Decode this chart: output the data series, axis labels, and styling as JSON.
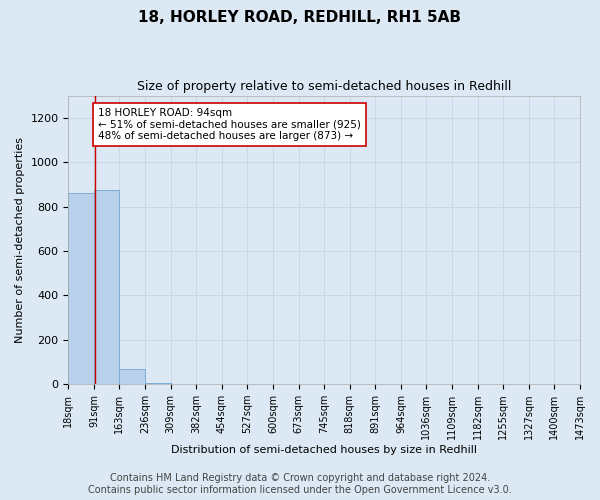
{
  "title": "18, HORLEY ROAD, REDHILL, RH1 5AB",
  "subtitle": "Size of property relative to semi-detached houses in Redhill",
  "xlabel": "Distribution of semi-detached houses by size in Redhill",
  "ylabel": "Number of semi-detached properties",
  "annotation_line1": "18 HORLEY ROAD: 94sqm",
  "annotation_line2": "← 51% of semi-detached houses are smaller (925)",
  "annotation_line3": "48% of semi-detached houses are larger (873) →",
  "bin_edges": [
    18,
    91,
    163,
    236,
    309,
    382,
    454,
    527,
    600,
    673,
    745,
    818,
    891,
    964,
    1036,
    1109,
    1182,
    1255,
    1327,
    1400,
    1473
  ],
  "bin_labels": [
    "18sqm",
    "91sqm",
    "163sqm",
    "236sqm",
    "309sqm",
    "382sqm",
    "454sqm",
    "527sqm",
    "600sqm",
    "673sqm",
    "745sqm",
    "818sqm",
    "891sqm",
    "964sqm",
    "1036sqm",
    "1109sqm",
    "1182sqm",
    "1255sqm",
    "1327sqm",
    "1400sqm",
    "1473sqm"
  ],
  "bar_heights": [
    860,
    873,
    70,
    5,
    0,
    0,
    0,
    0,
    0,
    0,
    0,
    0,
    0,
    0,
    0,
    0,
    0,
    0,
    0,
    0
  ],
  "bar_color": "#b8d0ea",
  "bar_edge_color": "#7aadd4",
  "vline_x": 94,
  "vline_color": "#cc0000",
  "ylim": [
    0,
    1300
  ],
  "yticks": [
    0,
    200,
    400,
    600,
    800,
    1000,
    1200
  ],
  "grid_color": "#c8d8e8",
  "background_color": "#dce9f5",
  "annotation_box_facecolor": "#ffffff",
  "annotation_box_edgecolor": "#cc0000",
  "footer_line1": "Contains HM Land Registry data © Crown copyright and database right 2024.",
  "footer_line2": "Contains public sector information licensed under the Open Government Licence v3.0.",
  "title_fontsize": 11,
  "subtitle_fontsize": 9,
  "axis_label_fontsize": 8,
  "tick_fontsize": 7,
  "annotation_fontsize": 7.5,
  "footer_fontsize": 7
}
